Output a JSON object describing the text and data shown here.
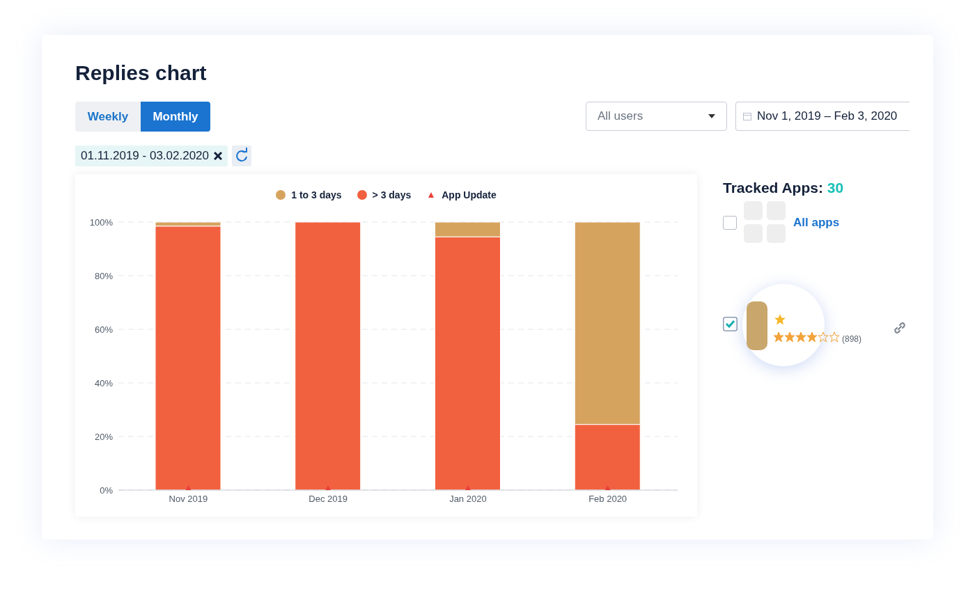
{
  "chart_data": {
    "type": "bar",
    "title": "Replies chart",
    "categories": [
      "Nov 2019",
      "Dec 2019",
      "Jan 2020",
      "Feb 2020"
    ],
    "stacked": true,
    "series": [
      {
        "name": "> 3 days",
        "color": "#f2613f",
        "values": [
          98.5,
          100,
          94.5,
          24.5
        ]
      },
      {
        "name": "1 to 3 days",
        "color": "#d6a35f",
        "values": [
          1.5,
          0,
          5.5,
          75.5
        ]
      },
      {
        "name": "App Update",
        "type": "scatter",
        "color": "#e8413b",
        "marker": "triangle",
        "x": [
          "Nov 2019",
          "Dec 2019",
          "Jan 2020",
          "Feb 2020"
        ],
        "values": [
          0,
          0,
          0,
          0
        ]
      }
    ],
    "ylim": [
      0,
      100
    ],
    "yticks": [
      {
        "value": 0,
        "label": "0%"
      },
      {
        "value": 20,
        "label": "20%"
      },
      {
        "value": 40,
        "label": "40%"
      },
      {
        "value": 60,
        "label": "60%"
      },
      {
        "value": 80,
        "label": "80%"
      },
      {
        "value": 100,
        "label": "100%"
      }
    ],
    "grid": "y",
    "legend": "top",
    "annotations": [
      "Weekly",
      "Monthly",
      "All users",
      "Nov 1, 2019 – Feb 3, 2020",
      "01.11.2019 - 03.02.2020",
      "Tracked Apps:",
      "30",
      "All apps",
      "(898)"
    ]
  }
}
